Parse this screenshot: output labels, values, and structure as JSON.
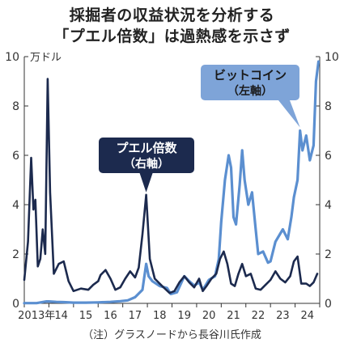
{
  "title_lines": [
    "採掘者の収益状況を分析する",
    "「プエル倍数」は過熱感を示さず"
  ],
  "source": "（注）グラスノードから長谷川氏作成",
  "colors": {
    "bitcoin": "#5b8fd0",
    "puell": "#1c2a4e",
    "label_bitcoin_bg": "#7ea4d8",
    "label_puell_bg": "#1c2a4e"
  },
  "chart_data": {
    "type": "line",
    "left_axis": {
      "unit": "万ドル",
      "ylim": [
        0,
        10
      ],
      "ticks": [
        "0",
        "2",
        "4",
        "6",
        "8",
        "10"
      ]
    },
    "right_axis": {
      "ylim": [
        0,
        10
      ],
      "ticks": [
        "0",
        "2",
        "4",
        "6",
        "8",
        "10"
      ]
    },
    "x_tick_labels": [
      "2013年",
      "14",
      "15",
      "16",
      "17",
      "18",
      "19",
      "20",
      "21",
      "22",
      "23",
      "24"
    ],
    "xlim": [
      2013,
      2025
    ],
    "series": [
      {
        "name": "ビットコイン",
        "axis_label": "（左軸）",
        "axis": "left",
        "points": [
          [
            2013.0,
            0.01
          ],
          [
            2013.5,
            0.01
          ],
          [
            2013.9,
            0.08
          ],
          [
            2014.0,
            0.08
          ],
          [
            2014.3,
            0.06
          ],
          [
            2014.6,
            0.05
          ],
          [
            2015.0,
            0.03
          ],
          [
            2015.5,
            0.03
          ],
          [
            2016.0,
            0.04
          ],
          [
            2016.5,
            0.06
          ],
          [
            2016.9,
            0.09
          ],
          [
            2017.2,
            0.12
          ],
          [
            2017.5,
            0.25
          ],
          [
            2017.8,
            0.55
          ],
          [
            2017.95,
            1.6
          ],
          [
            2018.05,
            1.1
          ],
          [
            2018.2,
            0.9
          ],
          [
            2018.5,
            0.7
          ],
          [
            2018.8,
            0.62
          ],
          [
            2018.95,
            0.38
          ],
          [
            2019.2,
            0.45
          ],
          [
            2019.5,
            1.1
          ],
          [
            2019.7,
            0.9
          ],
          [
            2019.9,
            0.72
          ],
          [
            2020.1,
            0.85
          ],
          [
            2020.25,
            0.55
          ],
          [
            2020.5,
            0.95
          ],
          [
            2020.75,
            1.1
          ],
          [
            2020.9,
            1.8
          ],
          [
            2021.0,
            3.3
          ],
          [
            2021.15,
            5.0
          ],
          [
            2021.3,
            6.0
          ],
          [
            2021.4,
            5.5
          ],
          [
            2021.5,
            3.5
          ],
          [
            2021.6,
            3.2
          ],
          [
            2021.75,
            4.8
          ],
          [
            2021.85,
            6.2
          ],
          [
            2021.95,
            5.0
          ],
          [
            2022.1,
            4.0
          ],
          [
            2022.25,
            4.5
          ],
          [
            2022.4,
            3.0
          ],
          [
            2022.5,
            2.0
          ],
          [
            2022.7,
            2.1
          ],
          [
            2022.9,
            1.65
          ],
          [
            2023.0,
            1.7
          ],
          [
            2023.2,
            2.5
          ],
          [
            2023.5,
            3.0
          ],
          [
            2023.7,
            2.6
          ],
          [
            2023.85,
            3.5
          ],
          [
            2023.95,
            4.3
          ],
          [
            2024.1,
            5.0
          ],
          [
            2024.2,
            7.0
          ],
          [
            2024.3,
            6.2
          ],
          [
            2024.45,
            6.8
          ],
          [
            2024.6,
            5.8
          ],
          [
            2024.75,
            6.4
          ],
          [
            2024.85,
            9.0
          ],
          [
            2024.95,
            9.8
          ]
        ]
      },
      {
        "name": "プエル倍数",
        "axis_label": "（右軸）",
        "axis": "right",
        "points": [
          [
            2013.0,
            0.95
          ],
          [
            2013.15,
            2.5
          ],
          [
            2013.28,
            5.9
          ],
          [
            2013.37,
            3.8
          ],
          [
            2013.45,
            4.2
          ],
          [
            2013.55,
            1.5
          ],
          [
            2013.65,
            1.8
          ],
          [
            2013.75,
            3.0
          ],
          [
            2013.85,
            2.0
          ],
          [
            2013.95,
            9.1
          ],
          [
            2014.05,
            4.5
          ],
          [
            2014.2,
            1.2
          ],
          [
            2014.4,
            1.6
          ],
          [
            2014.6,
            1.7
          ],
          [
            2014.8,
            0.9
          ],
          [
            2015.0,
            0.5
          ],
          [
            2015.3,
            0.6
          ],
          [
            2015.6,
            0.55
          ],
          [
            2015.8,
            0.75
          ],
          [
            2016.0,
            0.9
          ],
          [
            2016.1,
            1.15
          ],
          [
            2016.3,
            1.35
          ],
          [
            2016.5,
            1.0
          ],
          [
            2016.7,
            0.55
          ],
          [
            2016.9,
            0.65
          ],
          [
            2017.1,
            1.0
          ],
          [
            2017.3,
            1.3
          ],
          [
            2017.5,
            1.05
          ],
          [
            2017.65,
            1.45
          ],
          [
            2017.8,
            2.8
          ],
          [
            2017.95,
            4.4
          ],
          [
            2018.1,
            1.8
          ],
          [
            2018.3,
            1.0
          ],
          [
            2018.6,
            0.7
          ],
          [
            2018.9,
            0.42
          ],
          [
            2019.1,
            0.5
          ],
          [
            2019.3,
            0.85
          ],
          [
            2019.5,
            1.1
          ],
          [
            2019.7,
            0.85
          ],
          [
            2019.9,
            0.65
          ],
          [
            2020.1,
            1.0
          ],
          [
            2020.25,
            0.5
          ],
          [
            2020.4,
            0.7
          ],
          [
            2020.6,
            1.0
          ],
          [
            2020.8,
            1.2
          ],
          [
            2020.95,
            1.8
          ],
          [
            2021.1,
            2.1
          ],
          [
            2021.25,
            1.6
          ],
          [
            2021.4,
            0.8
          ],
          [
            2021.55,
            0.7
          ],
          [
            2021.7,
            1.2
          ],
          [
            2021.85,
            1.6
          ],
          [
            2022.0,
            1.1
          ],
          [
            2022.2,
            1.2
          ],
          [
            2022.4,
            0.6
          ],
          [
            2022.6,
            0.55
          ],
          [
            2022.8,
            0.75
          ],
          [
            2023.0,
            0.95
          ],
          [
            2023.2,
            1.3
          ],
          [
            2023.4,
            1.0
          ],
          [
            2023.6,
            0.85
          ],
          [
            2023.8,
            1.1
          ],
          [
            2023.95,
            1.7
          ],
          [
            2024.1,
            1.9
          ],
          [
            2024.25,
            0.8
          ],
          [
            2024.45,
            0.8
          ],
          [
            2024.6,
            0.7
          ],
          [
            2024.75,
            0.85
          ],
          [
            2024.9,
            1.2
          ]
        ]
      }
    ]
  }
}
